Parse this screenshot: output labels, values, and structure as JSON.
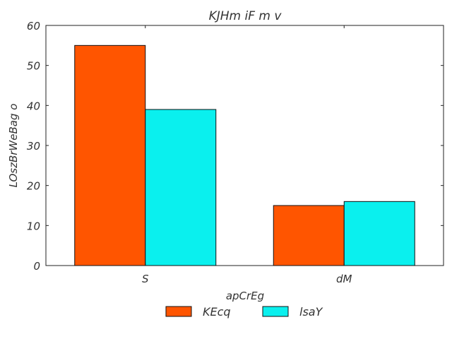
{
  "chart_data": {
    "type": "bar",
    "title": "KJHm iF m  v",
    "xlabel": "apCrEg",
    "ylabel": "LOszBrWeBag o",
    "categories": [
      "S",
      "dM"
    ],
    "series": [
      {
        "name": "KEcq",
        "values": [
          55,
          15
        ],
        "color": "#ff5500"
      },
      {
        "name": "lsaY",
        "values": [
          39,
          16
        ],
        "color": "#0af0ee"
      }
    ],
    "ylim": [
      0,
      60
    ],
    "yticks": [
      0,
      10,
      20,
      30,
      40,
      50,
      60
    ],
    "grid": false,
    "legend_position": "bottom-center"
  }
}
